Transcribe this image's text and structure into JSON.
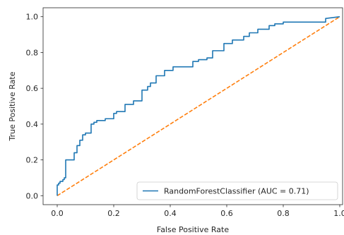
{
  "chart_data": {
    "type": "line",
    "title": "",
    "xlabel": "False Positive Rate",
    "ylabel": "True Positive Rate",
    "xlim": [
      -0.05,
      1.01
    ],
    "ylim": [
      -0.05,
      1.05
    ],
    "xticks": [
      0.0,
      0.2,
      0.4,
      0.6,
      0.8,
      1.0
    ],
    "xtick_labels": [
      "0.0",
      "0.2",
      "0.4",
      "0.6",
      "0.8",
      "1.0"
    ],
    "yticks": [
      0.0,
      0.2,
      0.4,
      0.6,
      0.8,
      1.0
    ],
    "ytick_labels": [
      "0.0",
      "0.2",
      "0.4",
      "0.6",
      "0.8",
      "1.0"
    ],
    "grid": false,
    "legend_position": "lower-right",
    "series": [
      {
        "name": "RandomForestClassifier (AUC = 0.71)",
        "color": "#1f77b4",
        "style": "solid",
        "x": [
          0.0,
          0.0,
          0.005,
          0.005,
          0.01,
          0.01,
          0.02,
          0.02,
          0.025,
          0.025,
          0.03,
          0.03,
          0.06,
          0.06,
          0.07,
          0.07,
          0.08,
          0.08,
          0.09,
          0.09,
          0.1,
          0.1,
          0.12,
          0.12,
          0.13,
          0.13,
          0.14,
          0.14,
          0.17,
          0.17,
          0.2,
          0.2,
          0.21,
          0.21,
          0.24,
          0.24,
          0.27,
          0.27,
          0.3,
          0.3,
          0.32,
          0.32,
          0.33,
          0.33,
          0.35,
          0.35,
          0.38,
          0.38,
          0.41,
          0.41,
          0.48,
          0.48,
          0.5,
          0.5,
          0.53,
          0.53,
          0.55,
          0.55,
          0.59,
          0.59,
          0.62,
          0.62,
          0.66,
          0.66,
          0.68,
          0.68,
          0.71,
          0.71,
          0.75,
          0.75,
          0.77,
          0.77,
          0.8,
          0.8,
          0.95,
          0.95,
          1.0
        ],
        "y": [
          0.0,
          0.06,
          0.06,
          0.07,
          0.07,
          0.08,
          0.08,
          0.09,
          0.09,
          0.1,
          0.1,
          0.2,
          0.2,
          0.24,
          0.24,
          0.28,
          0.28,
          0.31,
          0.31,
          0.34,
          0.34,
          0.35,
          0.35,
          0.4,
          0.4,
          0.41,
          0.41,
          0.42,
          0.42,
          0.43,
          0.43,
          0.46,
          0.46,
          0.47,
          0.47,
          0.51,
          0.51,
          0.53,
          0.53,
          0.59,
          0.59,
          0.61,
          0.61,
          0.63,
          0.63,
          0.67,
          0.67,
          0.7,
          0.7,
          0.72,
          0.72,
          0.75,
          0.75,
          0.76,
          0.76,
          0.77,
          0.77,
          0.81,
          0.81,
          0.85,
          0.85,
          0.87,
          0.87,
          0.89,
          0.89,
          0.91,
          0.91,
          0.93,
          0.93,
          0.95,
          0.95,
          0.96,
          0.96,
          0.97,
          0.97,
          0.99,
          1.0
        ]
      },
      {
        "name": "",
        "color": "#ff7f0e",
        "style": "dashed",
        "x": [
          0.0,
          1.0
        ],
        "y": [
          0.0,
          1.0
        ]
      }
    ]
  }
}
